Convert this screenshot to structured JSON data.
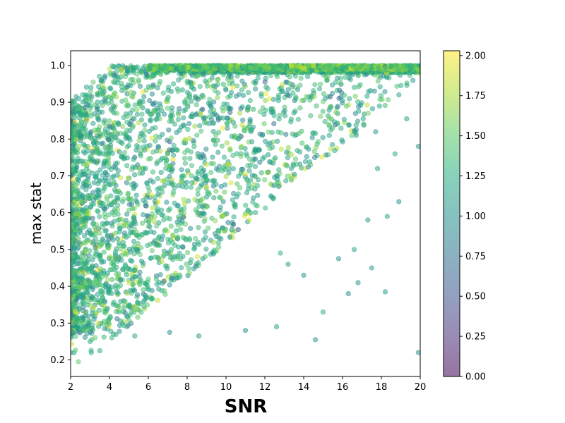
{
  "chart_data": {
    "type": "scatter",
    "title": "",
    "xlabel": "SNR",
    "ylabel": "max stat",
    "xlim": [
      2,
      20
    ],
    "ylim": [
      0.155,
      1.04
    ],
    "xticks": [
      "2",
      "4",
      "6",
      "8",
      "10",
      "12",
      "14",
      "16",
      "18",
      "20"
    ],
    "yticks": [
      "0.2",
      "0.3",
      "0.4",
      "0.5",
      "0.6",
      "0.7",
      "0.8",
      "0.9",
      "1.0"
    ],
    "grid": false,
    "colormap": "viridis",
    "marker_alpha": 0.5,
    "colorbar": {
      "range": [
        0.0,
        2.03
      ],
      "ticks": [
        "0.00",
        "0.25",
        "0.50",
        "0.75",
        "1.00",
        "1.25",
        "1.50",
        "1.75",
        "2.00"
      ]
    },
    "series": [
      {
        "points": [
          {
            "x": 2.0,
            "y": 0.22,
            "c": 1.1
          },
          {
            "x": 2.0,
            "y": 0.28,
            "c": 1.05
          },
          {
            "x": 2.4,
            "y": 0.195,
            "c": 1.5
          },
          {
            "x": 3.0,
            "y": 0.25,
            "c": 1.2
          },
          {
            "x": 3.5,
            "y": 0.225,
            "c": 1.15
          },
          {
            "x": 4.2,
            "y": 0.27,
            "c": 1.3
          },
          {
            "x": 5.3,
            "y": 0.265,
            "c": 1.1
          },
          {
            "x": 7.1,
            "y": 0.275,
            "c": 1.0
          },
          {
            "x": 8.6,
            "y": 0.265,
            "c": 1.05
          },
          {
            "x": 11.0,
            "y": 0.28,
            "c": 1.0
          },
          {
            "x": 12.6,
            "y": 0.29,
            "c": 1.1
          },
          {
            "x": 14.6,
            "y": 0.255,
            "c": 1.05
          },
          {
            "x": 15.0,
            "y": 0.33,
            "c": 1.2
          },
          {
            "x": 16.3,
            "y": 0.38,
            "c": 1.0
          },
          {
            "x": 18.2,
            "y": 0.385,
            "c": 1.05
          },
          {
            "x": 19.9,
            "y": 0.22,
            "c": 1.0
          },
          {
            "x": 17.5,
            "y": 0.45,
            "c": 1.1
          },
          {
            "x": 16.8,
            "y": 0.41,
            "c": 1.05
          },
          {
            "x": 14.0,
            "y": 0.43,
            "c": 1.0
          },
          {
            "x": 13.2,
            "y": 0.46,
            "c": 1.1
          },
          {
            "x": 12.8,
            "y": 0.49,
            "c": 1.3
          },
          {
            "x": 15.8,
            "y": 0.475,
            "c": 1.0
          },
          {
            "x": 16.6,
            "y": 0.5,
            "c": 1.1
          },
          {
            "x": 17.3,
            "y": 0.58,
            "c": 1.05
          },
          {
            "x": 18.3,
            "y": 0.59,
            "c": 1.2
          },
          {
            "x": 17.8,
            "y": 0.72,
            "c": 1.1
          },
          {
            "x": 18.9,
            "y": 0.63,
            "c": 1.0
          },
          {
            "x": 19.9,
            "y": 0.78,
            "c": 1.05
          },
          {
            "x": 19.3,
            "y": 0.855,
            "c": 1.1
          },
          {
            "x": 18.7,
            "y": 0.76,
            "c": 1.2
          },
          {
            "x": 17.7,
            "y": 0.82,
            "c": 1.05
          },
          {
            "x": 16.7,
            "y": 0.81,
            "c": 1.1
          },
          {
            "x": 18.9,
            "y": 0.92,
            "c": 1.15
          },
          {
            "x": 17.9,
            "y": 0.89,
            "c": 1.1
          },
          {
            "x": 16.0,
            "y": 0.905,
            "c": 1.2
          },
          {
            "x": 15.2,
            "y": 0.96,
            "c": 1.3
          },
          {
            "x": 11.0,
            "y": 0.705,
            "c": 1.95
          },
          {
            "x": 11.2,
            "y": 0.58,
            "c": 1.9
          },
          {
            "x": 9.0,
            "y": 0.67,
            "c": 1.85
          },
          {
            "x": 5.0,
            "y": 0.41,
            "c": 1.9
          },
          {
            "x": 4.6,
            "y": 0.99,
            "c": 1.95
          },
          {
            "x": 6.5,
            "y": 0.63,
            "c": 1.9
          },
          {
            "x": 19.5,
            "y": 1.0,
            "c": 1.3
          },
          {
            "x": 20.0,
            "y": 1.0,
            "c": 1.25
          },
          {
            "x": 18.5,
            "y": 1.0,
            "c": 1.4
          },
          {
            "x": 17.5,
            "y": 0.99,
            "c": 1.2
          },
          {
            "x": 16.5,
            "y": 1.0,
            "c": 1.5
          },
          {
            "x": 15.5,
            "y": 1.0,
            "c": 1.6
          },
          {
            "x": 14.5,
            "y": 1.0,
            "c": 1.8
          },
          {
            "x": 13.5,
            "y": 1.0,
            "c": 1.7
          },
          {
            "x": 12.0,
            "y": 1.0,
            "c": 1.6
          }
        ]
      }
    ]
  }
}
